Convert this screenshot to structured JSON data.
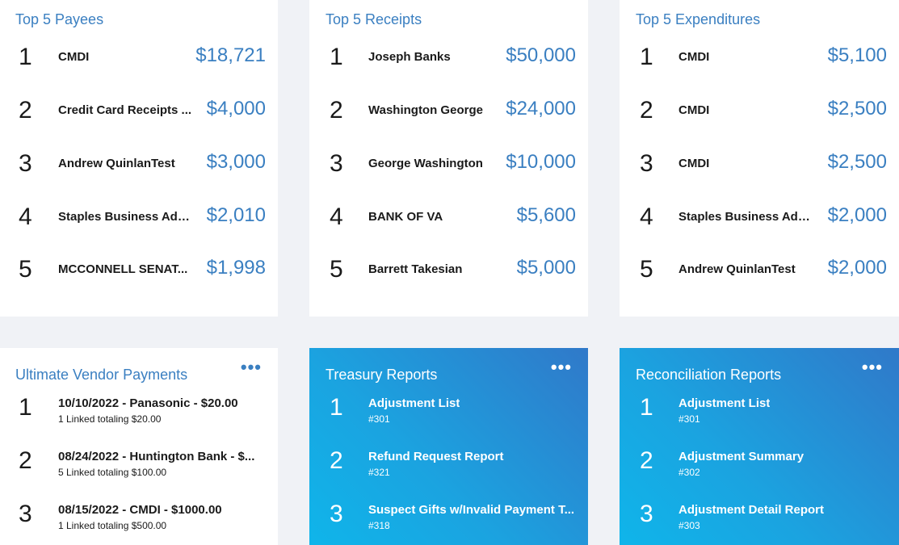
{
  "payees": {
    "title": "Top 5 Payees",
    "items": [
      {
        "rank": "1",
        "name": "CMDI",
        "amount": "$18,721"
      },
      {
        "rank": "2",
        "name": "Credit Card Receipts ...",
        "amount": "$4,000"
      },
      {
        "rank": "3",
        "name": "Andrew QuinlanTest",
        "amount": "$3,000"
      },
      {
        "rank": "4",
        "name": "Staples Business Adv...",
        "amount": "$2,010"
      },
      {
        "rank": "5",
        "name": "MCCONNELL SENAT...",
        "amount": "$1,998"
      }
    ]
  },
  "receipts": {
    "title": "Top 5 Receipts",
    "items": [
      {
        "rank": "1",
        "name": "Joseph Banks",
        "amount": "$50,000"
      },
      {
        "rank": "2",
        "name": "Washington George",
        "amount": "$24,000"
      },
      {
        "rank": "3",
        "name": "George Washington",
        "amount": "$10,000"
      },
      {
        "rank": "4",
        "name": "BANK OF VA",
        "amount": "$5,600"
      },
      {
        "rank": "5",
        "name": "Barrett Takesian",
        "amount": "$5,000"
      }
    ]
  },
  "expenditures": {
    "title": "Top 5 Expenditures",
    "items": [
      {
        "rank": "1",
        "name": "CMDI",
        "amount": "$5,100"
      },
      {
        "rank": "2",
        "name": "CMDI",
        "amount": "$2,500"
      },
      {
        "rank": "3",
        "name": "CMDI",
        "amount": "$2,500"
      },
      {
        "rank": "4",
        "name": "Staples Business Adv...",
        "amount": "$2,000"
      },
      {
        "rank": "5",
        "name": "Andrew QuinlanTest",
        "amount": "$2,000"
      }
    ]
  },
  "vendor_payments": {
    "title": "Ultimate Vendor Payments",
    "more_label": "•••",
    "items": [
      {
        "rank": "1",
        "line1": "10/10/2022 - Panasonic - $20.00",
        "line2": "1 Linked totaling $20.00"
      },
      {
        "rank": "2",
        "line1": "08/24/2022 - Huntington Bank - $...",
        "line2": "5 Linked totaling $100.00"
      },
      {
        "rank": "3",
        "line1": "08/15/2022 - CMDI - $1000.00",
        "line2": "1 Linked totaling $500.00"
      }
    ]
  },
  "treasury": {
    "title": "Treasury Reports",
    "more_label": "•••",
    "items": [
      {
        "rank": "1",
        "line1": "Adjustment List",
        "line2": "#301"
      },
      {
        "rank": "2",
        "line1": "Refund Request Report",
        "line2": "#321"
      },
      {
        "rank": "3",
        "line1": "Suspect Gifts w/Invalid Payment T...",
        "line2": "#318"
      }
    ]
  },
  "reconciliation": {
    "title": "Reconciliation Reports",
    "more_label": "•••",
    "items": [
      {
        "rank": "1",
        "line1": "Adjustment List",
        "line2": "#301"
      },
      {
        "rank": "2",
        "line1": "Adjustment Summary",
        "line2": "#302"
      },
      {
        "rank": "3",
        "line1": "Adjustment Detail Report",
        "line2": "#303"
      }
    ]
  },
  "colors": {
    "accent": "#3a7fc1",
    "gradient_start": "#0fb5ea",
    "gradient_end": "#3079c9",
    "page_bg": "#f0f2f6"
  }
}
